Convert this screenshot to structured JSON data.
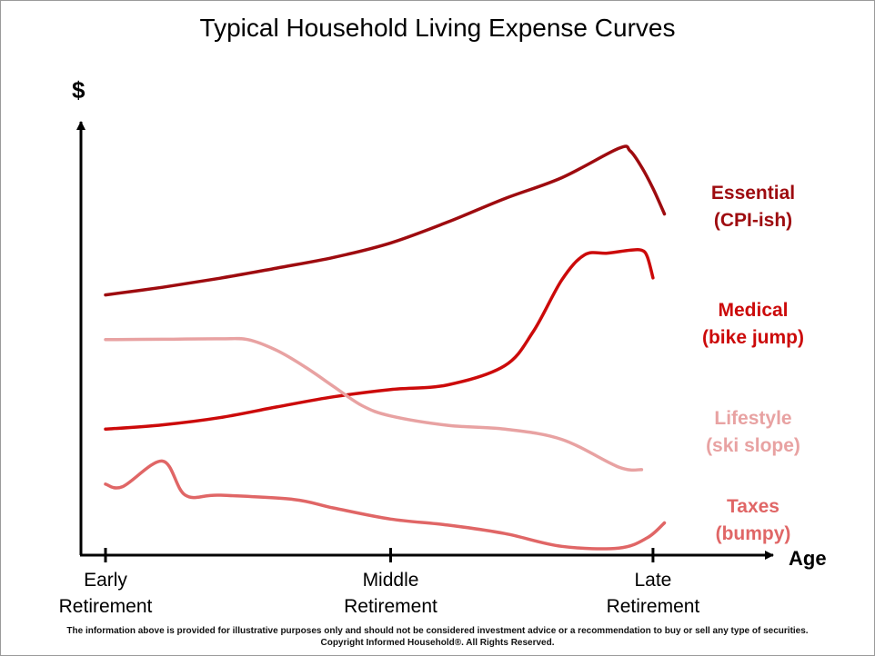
{
  "chart_data": {
    "type": "line",
    "title": "Typical Household Living Expense Curves",
    "ylabel": "$",
    "xlabel": "Age",
    "xlim": [
      0,
      100
    ],
    "ylim": [
      0,
      100
    ],
    "grid": false,
    "legend": "right",
    "tick_labels": [
      {
        "x": 0,
        "lines": [
          "Early",
          "Retirement"
        ]
      },
      {
        "x": 50,
        "lines": [
          "Middle",
          "Retirement"
        ]
      },
      {
        "x": 96,
        "lines": [
          "Late",
          "Retirement"
        ]
      }
    ],
    "series": [
      {
        "name": "Essential",
        "note": "(CPI-ish)",
        "color": "#9e0b0f",
        "points": [
          [
            0,
            60
          ],
          [
            10,
            61.8
          ],
          [
            20,
            63.9
          ],
          [
            30,
            66.3
          ],
          [
            40,
            68.8
          ],
          [
            50,
            72.2
          ],
          [
            60,
            77.1
          ],
          [
            70,
            82.6
          ],
          [
            80,
            87.5
          ],
          [
            90,
            94.4
          ],
          [
            92,
            93.8
          ],
          [
            94,
            90
          ],
          [
            96,
            85
          ],
          [
            98,
            79
          ]
        ]
      },
      {
        "name": "Medical",
        "note": "(bike jump)",
        "color": "#cc0a0a",
        "points": [
          [
            0,
            28.5
          ],
          [
            10,
            29.5
          ],
          [
            20,
            31.2
          ],
          [
            30,
            33.7
          ],
          [
            40,
            36.1
          ],
          [
            50,
            37.8
          ],
          [
            60,
            38.9
          ],
          [
            70,
            43.4
          ],
          [
            75,
            51.4
          ],
          [
            80,
            63.5
          ],
          [
            84,
            69.4
          ],
          [
            88,
            69.8
          ],
          [
            92,
            70.5
          ],
          [
            94,
            70.5
          ],
          [
            95,
            69
          ],
          [
            96,
            64
          ]
        ]
      },
      {
        "name": "Lifestyle",
        "note": "(ski slope)",
        "color": "#e8a2a2",
        "points": [
          [
            0,
            49.5
          ],
          [
            10,
            49.6
          ],
          [
            20,
            49.7
          ],
          [
            25,
            49.5
          ],
          [
            30,
            47
          ],
          [
            35,
            43.1
          ],
          [
            40,
            38.5
          ],
          [
            45,
            34
          ],
          [
            50,
            31.6
          ],
          [
            60,
            29.4
          ],
          [
            70,
            28.5
          ],
          [
            80,
            26.1
          ],
          [
            90,
            19.6
          ],
          [
            94,
            19
          ]
        ]
      },
      {
        "name": "Taxes",
        "note": "(bumpy)",
        "color": "#e06666",
        "points": [
          [
            0,
            15.6
          ],
          [
            3,
            15
          ],
          [
            10,
            21
          ],
          [
            14,
            13
          ],
          [
            20,
            13
          ],
          [
            33,
            12
          ],
          [
            40,
            10
          ],
          [
            50,
            7.4
          ],
          [
            60,
            6
          ],
          [
            70,
            4
          ],
          [
            80,
            1
          ],
          [
            90,
            0.6
          ],
          [
            95,
            3
          ],
          [
            98,
            6.5
          ]
        ]
      }
    ]
  },
  "footer": {
    "disclaimer": "The information above is provided for illustrative purposes only and should not be considered investment advice or a recommendation to buy or sell any type of securities.",
    "copyright": "Copyright Informed Household®. All Rights Reserved."
  }
}
